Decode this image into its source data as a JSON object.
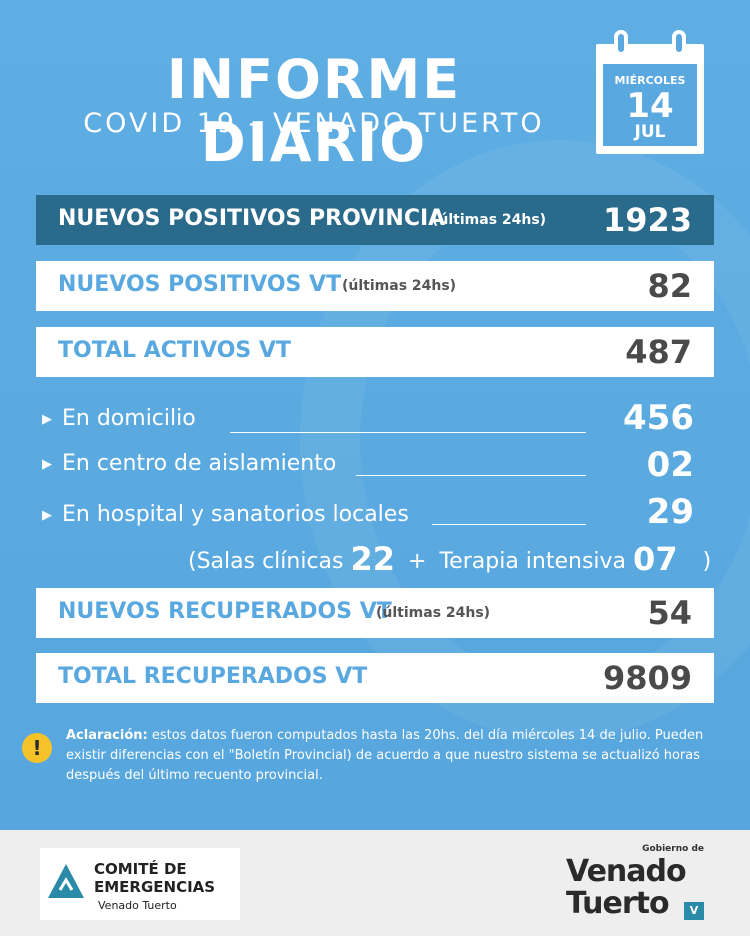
{
  "header": {
    "title": "INFORME DIARIO",
    "subtitle": "COVID 19 - VENADO TUERTO"
  },
  "calendar": {
    "weekday": "MIÉRCOLES",
    "day": "14",
    "month": "JUL"
  },
  "rows": {
    "provincia": {
      "label": "NUEVOS POSITIVOS PROVINCIA",
      "note": "(últimas 24hs)",
      "value": "1923"
    },
    "positivos_vt": {
      "label": "NUEVOS POSITIVOS VT",
      "note": "(últimas 24hs)",
      "value": "82"
    },
    "activos_vt": {
      "label": "TOTAL ACTIVOS VT",
      "value": "487"
    },
    "recuperados_vt": {
      "label": "NUEVOS RECUPERADOS VT",
      "note": "(últimas 24hs)",
      "value": "54"
    },
    "total_recuperados": {
      "label": "TOTAL RECUPERADOS VT",
      "value": "9809"
    }
  },
  "details": {
    "domicilio": {
      "label": "En domicilio",
      "value": "456"
    },
    "aislamiento": {
      "label": "En centro de aislamiento",
      "value": "02"
    },
    "hospital": {
      "label": "En hospital y sanatorios locales",
      "value": "29"
    },
    "salas": {
      "open": "(",
      "salas_label": "Salas clínicas",
      "salas_value": "22",
      "plus": "+",
      "terapia_label": "Terapia intensiva",
      "terapia_value": "07",
      "close": ")"
    }
  },
  "note": {
    "icon": "warning-icon",
    "bold": "Aclaración:",
    "text": " estos datos fueron computados hasta las 20hs. del día miércoles 14 de julio. Pueden existir diferencias con el \"Boletín Provincial) de acuerdo a que nuestro sistema se actualizó horas después del último recuento provincial."
  },
  "footer": {
    "comite_line1": "COMITÉ DE",
    "comite_line2": "EMERGENCIAS",
    "comite_sub": "Venado Tuerto",
    "gob": "Gobierno de",
    "vt_line1": "Venado",
    "vt_line2": "Tuerto"
  },
  "colors": {
    "background": "#5aa8e0",
    "dark_row": "#2a6a8a",
    "accent_text": "#5aa8e0",
    "warning": "#f5c229"
  }
}
